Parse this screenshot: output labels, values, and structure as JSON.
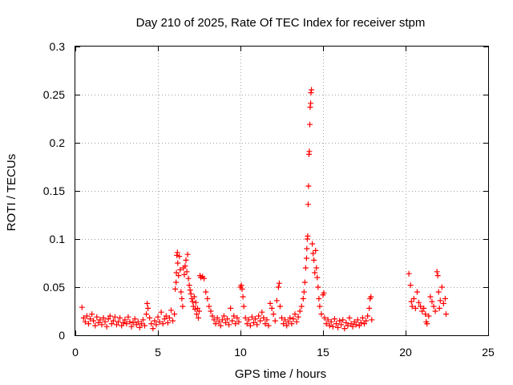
{
  "chart_data": {
    "type": "scatter",
    "title": "Day 210 of 2025, Rate Of TEC Index for receiver stpm",
    "xlabel": "GPS time / hours",
    "ylabel": "ROTI / TECUs",
    "xlim": [
      0,
      25
    ],
    "ylim": [
      0,
      0.3
    ],
    "xticks": [
      0,
      5,
      10,
      15,
      20,
      25
    ],
    "xtick_labels": [
      "0",
      "5",
      "10",
      "15",
      "20",
      "25"
    ],
    "yticks": [
      0,
      0.05,
      0.1,
      0.15,
      0.2,
      0.25,
      0.3
    ],
    "ytick_labels": [
      "0",
      "0.05",
      "0.1",
      "0.15",
      "0.2",
      "0.25",
      "0.3"
    ],
    "grid": true,
    "marker": "+",
    "color": "#ff0000",
    "series": [
      {
        "name": "ROTI",
        "points": [
          [
            0.4,
            0.029
          ],
          [
            0.5,
            0.018
          ],
          [
            0.6,
            0.014
          ],
          [
            0.7,
            0.02
          ],
          [
            0.8,
            0.012
          ],
          [
            0.9,
            0.017
          ],
          [
            1.0,
            0.022
          ],
          [
            1.1,
            0.015
          ],
          [
            1.2,
            0.01
          ],
          [
            1.3,
            0.019
          ],
          [
            1.4,
            0.013
          ],
          [
            1.5,
            0.016
          ],
          [
            1.6,
            0.011
          ],
          [
            1.7,
            0.018
          ],
          [
            1.8,
            0.014
          ],
          [
            1.9,
            0.009
          ],
          [
            2.0,
            0.017
          ],
          [
            2.1,
            0.02
          ],
          [
            2.2,
            0.012
          ],
          [
            2.3,
            0.015
          ],
          [
            2.4,
            0.019
          ],
          [
            2.5,
            0.011
          ],
          [
            2.6,
            0.014
          ],
          [
            2.7,
            0.018
          ],
          [
            2.8,
            0.01
          ],
          [
            2.9,
            0.013
          ],
          [
            3.0,
            0.016
          ],
          [
            3.1,
            0.012
          ],
          [
            3.2,
            0.019
          ],
          [
            3.3,
            0.014
          ],
          [
            3.4,
            0.009
          ],
          [
            3.5,
            0.013
          ],
          [
            3.6,
            0.017
          ],
          [
            3.7,
            0.011
          ],
          [
            3.8,
            0.014
          ],
          [
            3.9,
            0.008
          ],
          [
            4.0,
            0.012
          ],
          [
            4.1,
            0.016
          ],
          [
            4.2,
            0.01
          ],
          [
            4.3,
            0.022
          ],
          [
            4.35,
            0.033
          ],
          [
            4.4,
            0.028
          ],
          [
            4.5,
            0.018
          ],
          [
            4.6,
            0.012
          ],
          [
            4.7,
            0.007
          ],
          [
            4.8,
            0.015
          ],
          [
            4.9,
            0.011
          ],
          [
            5.0,
            0.019
          ],
          [
            5.1,
            0.014
          ],
          [
            5.2,
            0.024
          ],
          [
            5.3,
            0.012
          ],
          [
            5.4,
            0.017
          ],
          [
            5.5,
            0.02
          ],
          [
            5.6,
            0.013
          ],
          [
            5.7,
            0.018
          ],
          [
            5.8,
            0.026
          ],
          [
            5.9,
            0.015
          ],
          [
            6.0,
            0.022
          ],
          [
            6.05,
            0.048
          ],
          [
            6.1,
            0.055
          ],
          [
            6.12,
            0.065
          ],
          [
            6.15,
            0.083
          ],
          [
            6.18,
            0.086
          ],
          [
            6.2,
            0.075
          ],
          [
            6.25,
            0.062
          ],
          [
            6.3,
            0.082
          ],
          [
            6.35,
            0.068
          ],
          [
            6.4,
            0.045
          ],
          [
            6.45,
            0.038
          ],
          [
            6.5,
            0.03
          ],
          [
            6.55,
            0.07
          ],
          [
            6.6,
            0.063
          ],
          [
            6.65,
            0.072
          ],
          [
            6.7,
            0.078
          ],
          [
            6.75,
            0.066
          ],
          [
            6.8,
            0.084
          ],
          [
            6.85,
            0.059
          ],
          [
            6.9,
            0.052
          ],
          [
            6.95,
            0.047
          ],
          [
            7.0,
            0.043
          ],
          [
            7.05,
            0.038
          ],
          [
            7.1,
            0.035
          ],
          [
            7.15,
            0.03
          ],
          [
            7.2,
            0.04
          ],
          [
            7.25,
            0.027
          ],
          [
            7.3,
            0.034
          ],
          [
            7.35,
            0.022
          ],
          [
            7.4,
            0.028
          ],
          [
            7.45,
            0.018
          ],
          [
            7.5,
            0.025
          ],
          [
            7.55,
            0.062
          ],
          [
            7.6,
            0.06
          ],
          [
            7.7,
            0.061
          ],
          [
            7.8,
            0.059
          ],
          [
            7.9,
            0.045
          ],
          [
            8.0,
            0.038
          ],
          [
            8.1,
            0.03
          ],
          [
            8.2,
            0.025
          ],
          [
            8.3,
            0.02
          ],
          [
            8.4,
            0.016
          ],
          [
            8.5,
            0.012
          ],
          [
            8.6,
            0.018
          ],
          [
            8.7,
            0.014
          ],
          [
            8.8,
            0.01
          ],
          [
            8.9,
            0.016
          ],
          [
            9.0,
            0.02
          ],
          [
            9.1,
            0.013
          ],
          [
            9.2,
            0.017
          ],
          [
            9.3,
            0.011
          ],
          [
            9.4,
            0.028
          ],
          [
            9.5,
            0.015
          ],
          [
            9.6,
            0.02
          ],
          [
            9.7,
            0.012
          ],
          [
            9.8,
            0.018
          ],
          [
            9.9,
            0.014
          ],
          [
            10.0,
            0.05
          ],
          [
            10.05,
            0.052
          ],
          [
            10.1,
            0.048
          ],
          [
            10.15,
            0.04
          ],
          [
            10.2,
            0.03
          ],
          [
            10.3,
            0.018
          ],
          [
            10.4,
            0.012
          ],
          [
            10.5,
            0.016
          ],
          [
            10.6,
            0.01
          ],
          [
            10.7,
            0.019
          ],
          [
            10.8,
            0.013
          ],
          [
            10.9,
            0.017
          ],
          [
            11.0,
            0.011
          ],
          [
            11.1,
            0.02
          ],
          [
            11.2,
            0.015
          ],
          [
            11.3,
            0.024
          ],
          [
            11.4,
            0.018
          ],
          [
            11.5,
            0.012
          ],
          [
            11.6,
            0.016
          ],
          [
            11.7,
            0.01
          ],
          [
            11.8,
            0.033
          ],
          [
            11.9,
            0.028
          ],
          [
            12.0,
            0.022
          ],
          [
            12.1,
            0.015
          ],
          [
            12.2,
            0.036
          ],
          [
            12.3,
            0.05
          ],
          [
            12.35,
            0.054
          ],
          [
            12.4,
            0.03
          ],
          [
            12.5,
            0.018
          ],
          [
            12.6,
            0.012
          ],
          [
            12.7,
            0.016
          ],
          [
            12.8,
            0.01
          ],
          [
            12.9,
            0.014
          ],
          [
            13.0,
            0.018
          ],
          [
            13.1,
            0.012
          ],
          [
            13.2,
            0.017
          ],
          [
            13.3,
            0.022
          ],
          [
            13.4,
            0.014
          ],
          [
            13.5,
            0.019
          ],
          [
            13.6,
            0.025
          ],
          [
            13.7,
            0.03
          ],
          [
            13.8,
            0.038
          ],
          [
            13.85,
            0.045
          ],
          [
            13.9,
            0.055
          ],
          [
            13.95,
            0.07
          ],
          [
            14.0,
            0.08
          ],
          [
            14.02,
            0.09
          ],
          [
            14.05,
            0.1
          ],
          [
            14.07,
            0.103
          ],
          [
            14.1,
            0.136
          ],
          [
            14.12,
            0.155
          ],
          [
            14.15,
            0.188
          ],
          [
            14.17,
            0.191
          ],
          [
            14.2,
            0.219
          ],
          [
            14.22,
            0.237
          ],
          [
            14.25,
            0.241
          ],
          [
            14.27,
            0.252
          ],
          [
            14.3,
            0.255
          ],
          [
            14.35,
            0.095
          ],
          [
            14.4,
            0.085
          ],
          [
            14.45,
            0.078
          ],
          [
            14.5,
            0.065
          ],
          [
            14.55,
            0.088
          ],
          [
            14.6,
            0.07
          ],
          [
            14.65,
            0.06
          ],
          [
            14.7,
            0.05
          ],
          [
            14.75,
            0.038
          ],
          [
            14.8,
            0.03
          ],
          [
            14.9,
            0.022
          ],
          [
            15.0,
            0.042
          ],
          [
            15.05,
            0.044
          ],
          [
            15.1,
            0.018
          ],
          [
            15.2,
            0.012
          ],
          [
            15.3,
            0.016
          ],
          [
            15.4,
            0.01
          ],
          [
            15.5,
            0.014
          ],
          [
            15.6,
            0.009
          ],
          [
            15.7,
            0.017
          ],
          [
            15.8,
            0.012
          ],
          [
            15.9,
            0.008
          ],
          [
            16.0,
            0.015
          ],
          [
            16.1,
            0.011
          ],
          [
            16.2,
            0.016
          ],
          [
            16.3,
            0.007
          ],
          [
            16.4,
            0.013
          ],
          [
            16.5,
            0.01
          ],
          [
            16.6,
            0.018
          ],
          [
            16.7,
            0.012
          ],
          [
            16.8,
            0.009
          ],
          [
            16.9,
            0.014
          ],
          [
            17.0,
            0.011
          ],
          [
            17.1,
            0.016
          ],
          [
            17.2,
            0.01
          ],
          [
            17.3,
            0.013
          ],
          [
            17.4,
            0.018
          ],
          [
            17.5,
            0.012
          ],
          [
            17.6,
            0.015
          ],
          [
            17.7,
            0.02
          ],
          [
            17.8,
            0.028
          ],
          [
            17.85,
            0.038
          ],
          [
            17.9,
            0.04
          ],
          [
            17.95,
            0.016
          ],
          [
            20.2,
            0.064
          ],
          [
            20.3,
            0.052
          ],
          [
            20.35,
            0.035
          ],
          [
            20.4,
            0.03
          ],
          [
            20.5,
            0.038
          ],
          [
            20.6,
            0.028
          ],
          [
            20.7,
            0.045
          ],
          [
            20.8,
            0.034
          ],
          [
            20.9,
            0.03
          ],
          [
            21.0,
            0.025
          ],
          [
            21.1,
            0.028
          ],
          [
            21.2,
            0.022
          ],
          [
            21.25,
            0.014
          ],
          [
            21.3,
            0.012
          ],
          [
            21.4,
            0.02
          ],
          [
            21.5,
            0.04
          ],
          [
            21.6,
            0.035
          ],
          [
            21.7,
            0.03
          ],
          [
            21.8,
            0.025
          ],
          [
            21.9,
            0.066
          ],
          [
            21.95,
            0.062
          ],
          [
            22.0,
            0.045
          ],
          [
            22.05,
            0.028
          ],
          [
            22.1,
            0.036
          ],
          [
            22.2,
            0.05
          ],
          [
            22.3,
            0.033
          ],
          [
            22.4,
            0.038
          ],
          [
            22.45,
            0.022
          ]
        ]
      }
    ]
  }
}
